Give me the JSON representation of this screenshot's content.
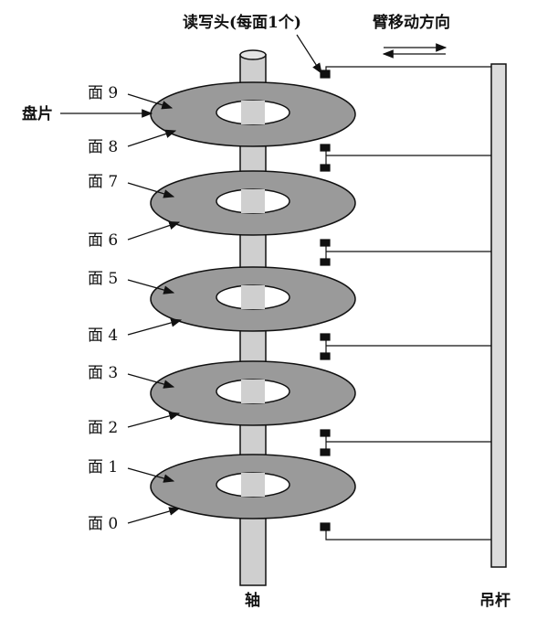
{
  "labels": {
    "head": "读写头(每面1个)",
    "arm_direction": "臂移动方向",
    "platter": "盘片",
    "spindle": "轴",
    "boom": "吊杆"
  },
  "surfaces": [
    "面 9",
    "面 8",
    "面 7",
    "面 6",
    "面 5",
    "面 4",
    "面 3",
    "面 2",
    "面 1",
    "面 0"
  ],
  "colors": {
    "platter_fill": "#9a9a9a",
    "spindle_fill": "#cfcfcf",
    "boom_fill": "#dcdcdc",
    "ink": "#111111"
  }
}
